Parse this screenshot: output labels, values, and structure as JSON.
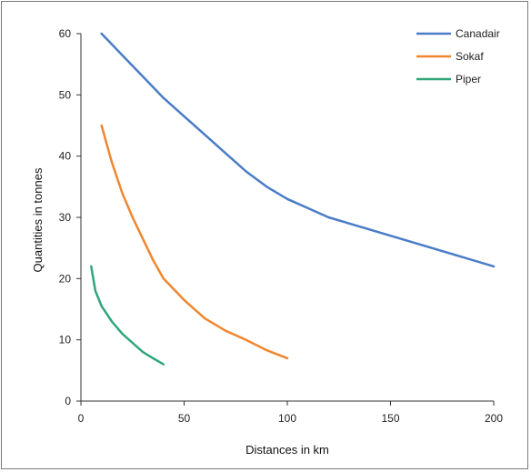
{
  "chart_data": {
    "type": "line",
    "title": "",
    "xlabel": "Distances in km",
    "ylabel": "Quantities in tonnes",
    "xlim": [
      0,
      200
    ],
    "ylim": [
      0,
      60
    ],
    "xticks": [
      0,
      50,
      100,
      150,
      200
    ],
    "yticks": [
      0,
      10,
      20,
      30,
      40,
      50,
      60
    ],
    "grid": false,
    "legend_position": "top-right",
    "series": [
      {
        "name": "Canadair",
        "color": "#4a7cc7",
        "points": [
          [
            10,
            60
          ],
          [
            20,
            56.5
          ],
          [
            30,
            53
          ],
          [
            40,
            49.5
          ],
          [
            50,
            46.5
          ],
          [
            60,
            43.5
          ],
          [
            70,
            40.5
          ],
          [
            80,
            37.5
          ],
          [
            90,
            35
          ],
          [
            100,
            33
          ],
          [
            110,
            31.5
          ],
          [
            120,
            30
          ],
          [
            150,
            27
          ],
          [
            200,
            22
          ]
        ]
      },
      {
        "name": "Sokaf",
        "color": "#f0862e",
        "points": [
          [
            10,
            45
          ],
          [
            15,
            39
          ],
          [
            20,
            34
          ],
          [
            25,
            30
          ],
          [
            30,
            26.5
          ],
          [
            35,
            23
          ],
          [
            40,
            20
          ],
          [
            50,
            16.5
          ],
          [
            60,
            13.5
          ],
          [
            70,
            11.5
          ],
          [
            80,
            10
          ],
          [
            90,
            8.3
          ],
          [
            100,
            7
          ]
        ]
      },
      {
        "name": "Piper",
        "color": "#2ea67a",
        "points": [
          [
            5,
            22
          ],
          [
            7,
            18
          ],
          [
            10,
            15.5
          ],
          [
            15,
            13
          ],
          [
            20,
            11
          ],
          [
            25,
            9.5
          ],
          [
            30,
            8
          ],
          [
            35,
            7
          ],
          [
            40,
            6
          ]
        ]
      }
    ]
  }
}
